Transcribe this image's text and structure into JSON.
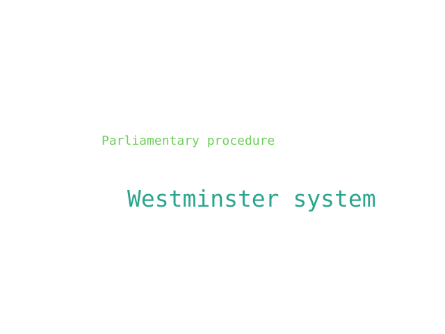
{
  "words": [
    {
      "text": "Parliamentary procedure",
      "color": "#6fce5e"
    },
    {
      "text": "Westminster system",
      "color": "#2ca58e"
    }
  ]
}
